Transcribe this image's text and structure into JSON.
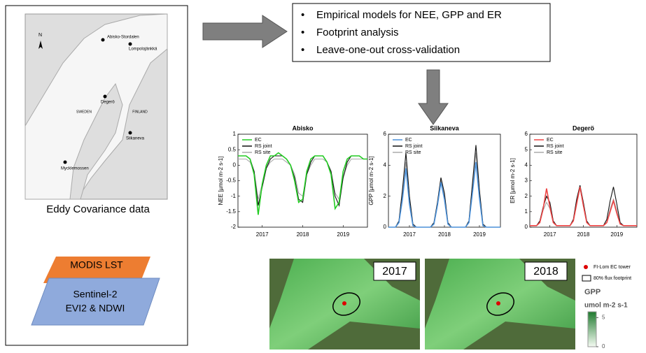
{
  "left_panel": {
    "map": {
      "north": "N",
      "sites": [
        "Abisko-Stordalen",
        "Lompolojänkkä",
        "Degerö",
        "Siikaneva",
        "Mycklemossen"
      ],
      "countries": [
        "SWEDEN",
        "FINLAND"
      ]
    },
    "caption": "Eddy Covariance data",
    "inputs": [
      "MODIS LST",
      "Sentinel-2",
      "EVI2 & NDWI"
    ]
  },
  "methods": [
    "Empirical models for NEE, GPP and ER",
    "Footprint analysis",
    "Leave-one-out cross-validation"
  ],
  "chart_data": [
    {
      "type": "line",
      "title": "Abisko",
      "y_label": "NEE [µmol m-2 s-1]",
      "legend": "upper left",
      "x": [
        2016.4,
        2016.5,
        2016.6,
        2016.7,
        2016.8,
        2016.9,
        2017.0,
        2017.1,
        2017.2,
        2017.3,
        2017.4,
        2017.5,
        2017.6,
        2017.7,
        2017.8,
        2017.9,
        2018.0,
        2018.1,
        2018.2,
        2018.3,
        2018.4,
        2018.5,
        2018.6,
        2018.7,
        2018.8,
        2018.9,
        2019.0,
        2019.1,
        2019.2,
        2019.3,
        2019.4,
        2019.5,
        2019.6
      ],
      "xlim": [
        2016.4,
        2019.6
      ],
      "xticks": [
        2017,
        2018,
        2019
      ],
      "ylim": [
        -2,
        1
      ],
      "yticks": [
        -2,
        -1.5,
        -1,
        -0.5,
        0,
        0.5,
        1
      ],
      "series": [
        {
          "name": "EC",
          "color": "#22cc22",
          "values": [
            0.3,
            0.3,
            0.3,
            0.2,
            -0.3,
            -1.6,
            -0.6,
            0.0,
            0.3,
            0.3,
            0.4,
            0.3,
            0.2,
            0.0,
            -0.5,
            -1.2,
            -1.1,
            -0.2,
            0.2,
            0.3,
            0.3,
            0.3,
            0.1,
            -0.3,
            -1.4,
            -1.2,
            -0.2,
            0.2,
            0.3,
            0.3,
            0.3,
            0.2,
            0.2
          ]
        },
        {
          "name": "RS joint",
          "color": "#111111",
          "values": [
            0.3,
            0.3,
            0.3,
            0.2,
            -0.2,
            -1.3,
            -0.7,
            -0.1,
            0.2,
            0.3,
            0.3,
            0.3,
            0.2,
            0.0,
            -0.4,
            -1.1,
            -1.2,
            -0.3,
            0.1,
            0.3,
            0.3,
            0.3,
            0.1,
            -0.2,
            -1.0,
            -1.3,
            -0.4,
            0.1,
            0.3,
            0.3,
            0.3,
            0.2,
            0.2
          ]
        },
        {
          "name": "RS site",
          "color": "#aaaaaa",
          "values": [
            0.2,
            0.2,
            0.2,
            0.1,
            -0.2,
            -1.1,
            -0.6,
            -0.1,
            0.1,
            0.2,
            0.2,
            0.2,
            0.1,
            0.0,
            -0.3,
            -0.9,
            -1.0,
            -0.3,
            0.0,
            0.2,
            0.2,
            0.2,
            0.1,
            -0.2,
            -0.9,
            -1.1,
            -0.4,
            0.0,
            0.2,
            0.2,
            0.2,
            0.2,
            0.2
          ]
        }
      ]
    },
    {
      "type": "line",
      "title": "Siikaneva",
      "y_label": "GPP [µmol m-2 s-1]",
      "legend": "upper left",
      "x": [
        2016.4,
        2016.5,
        2016.6,
        2016.7,
        2016.8,
        2016.9,
        2017.0,
        2017.1,
        2017.2,
        2017.3,
        2017.4,
        2017.5,
        2017.6,
        2017.7,
        2017.8,
        2017.9,
        2018.0,
        2018.1,
        2018.2,
        2018.3,
        2018.4,
        2018.5,
        2018.6,
        2018.7,
        2018.8,
        2018.9,
        2019.0,
        2019.1,
        2019.2,
        2019.3,
        2019.4,
        2019.5,
        2019.6
      ],
      "xlim": [
        2016.4,
        2019.6
      ],
      "xticks": [
        2017,
        2018,
        2019
      ],
      "ylim": [
        0,
        6
      ],
      "yticks": [
        0,
        2,
        4,
        6
      ],
      "series": [
        {
          "name": "EC",
          "color": "#4a90d9",
          "values": [
            0,
            0,
            0,
            0.3,
            1.8,
            3.8,
            1.5,
            0.1,
            0,
            0,
            0,
            0,
            0,
            0.2,
            1.4,
            2.9,
            1.8,
            0.2,
            0,
            0,
            0,
            0,
            0,
            0.3,
            2.2,
            4.2,
            1.9,
            0.1,
            0,
            0,
            0,
            0,
            0
          ]
        },
        {
          "name": "RS joint",
          "color": "#111111",
          "values": [
            0,
            0,
            0,
            0.4,
            2.4,
            4.8,
            2.0,
            0.2,
            0,
            0,
            0,
            0,
            0,
            0.3,
            1.6,
            3.2,
            2.2,
            0.3,
            0,
            0,
            0,
            0,
            0,
            0.4,
            2.8,
            5.3,
            2.4,
            0.2,
            0,
            0,
            0,
            0,
            0
          ]
        },
        {
          "name": "RS site",
          "color": "#aaaaaa",
          "values": [
            0,
            0,
            0,
            0.3,
            2.0,
            4.2,
            1.8,
            0.1,
            0,
            0,
            0,
            0,
            0,
            0.2,
            1.5,
            3.0,
            2.0,
            0.2,
            0,
            0,
            0,
            0,
            0,
            0.3,
            2.5,
            4.8,
            2.1,
            0.1,
            0,
            0,
            0,
            0,
            0
          ]
        }
      ]
    },
    {
      "type": "line",
      "title": "Degerö",
      "y_label": "ER [µmol m-2 s-1]",
      "legend": "upper left",
      "x": [
        2016.4,
        2016.5,
        2016.6,
        2016.7,
        2016.8,
        2016.9,
        2017.0,
        2017.1,
        2017.2,
        2017.3,
        2017.4,
        2017.5,
        2017.6,
        2017.7,
        2017.8,
        2017.9,
        2018.0,
        2018.1,
        2018.2,
        2018.3,
        2018.4,
        2018.5,
        2018.6,
        2018.7,
        2018.8,
        2018.9,
        2019.0,
        2019.1,
        2019.2,
        2019.3,
        2019.4,
        2019.5,
        2019.6
      ],
      "xlim": [
        2016.4,
        2019.6
      ],
      "xticks": [
        2017,
        2018,
        2019
      ],
      "ylim": [
        0,
        6
      ],
      "yticks": [
        0,
        1,
        2,
        3,
        4,
        5,
        6
      ],
      "series": [
        {
          "name": "EC",
          "color": "#ee4444",
          "values": [
            0.1,
            0.1,
            0.1,
            0.3,
            1.2,
            2.5,
            1.3,
            0.3,
            0.1,
            0.1,
            0.1,
            0.1,
            0.1,
            0.4,
            1.5,
            2.6,
            1.4,
            0.3,
            0.1,
            0.1,
            0.1,
            0.1,
            0.1,
            0.3,
            1.0,
            1.7,
            0.9,
            0.2,
            0.1,
            0.1,
            0.1,
            0.1,
            0.1
          ]
        },
        {
          "name": "RS joint",
          "color": "#111111",
          "values": [
            0.1,
            0.1,
            0.1,
            0.4,
            1.3,
            2.0,
            1.6,
            0.4,
            0.1,
            0.1,
            0.1,
            0.1,
            0.1,
            0.5,
            1.8,
            2.7,
            1.6,
            0.4,
            0.1,
            0.1,
            0.1,
            0.1,
            0.1,
            0.5,
            1.7,
            2.6,
            1.5,
            0.3,
            0.1,
            0.1,
            0.1,
            0.1,
            0.1
          ]
        },
        {
          "name": "RS site",
          "color": "#aaaaaa",
          "values": [
            0.1,
            0.1,
            0.1,
            0.3,
            1.1,
            1.6,
            1.2,
            0.3,
            0.1,
            0.1,
            0.1,
            0.1,
            0.1,
            0.4,
            1.6,
            2.5,
            1.4,
            0.3,
            0.1,
            0.1,
            0.1,
            0.1,
            0.1,
            0.3,
            1.2,
            1.8,
            1.1,
            0.2,
            0.1,
            0.1,
            0.1,
            0.1,
            0.1
          ]
        }
      ]
    }
  ],
  "maps": {
    "years": [
      "2017",
      "2018"
    ],
    "legend": {
      "tower": "FI-Lom EC tower",
      "footprint": "80% flux footprint",
      "variable": "GPP",
      "unit": "umol m-2 s-1",
      "colorbar_lim": [
        0,
        6
      ],
      "colorbar_ticks": [
        5,
        0
      ]
    }
  }
}
